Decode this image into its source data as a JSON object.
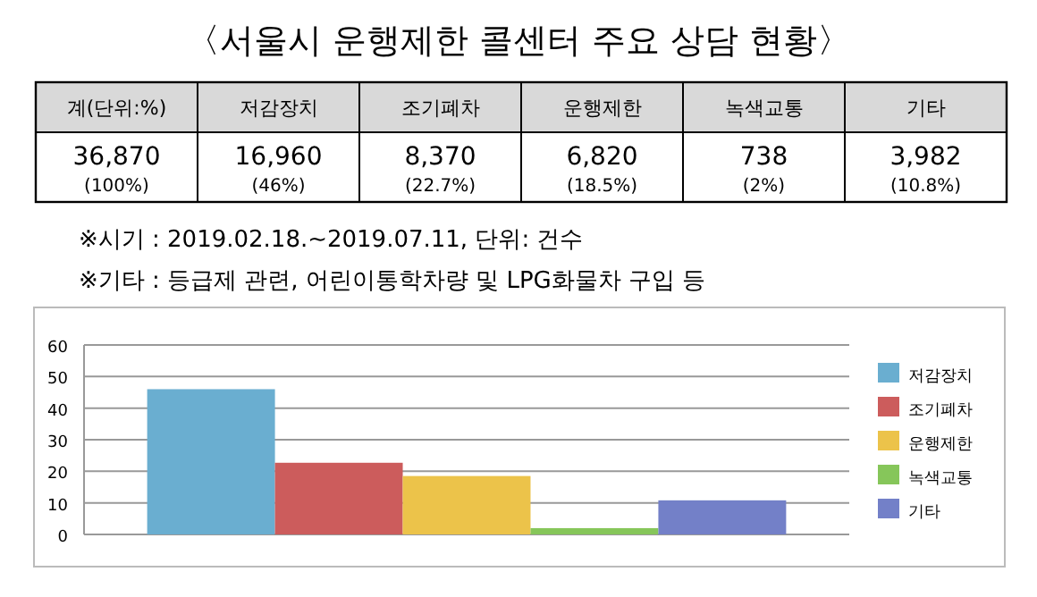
{
  "chart_data": {
    "type": "bar",
    "title": "〈서울시 운행제한 콜센터 주요 상담 현황〉",
    "categories": [
      null
    ],
    "series": [
      {
        "name": "저감장치",
        "color": "#6aaed0",
        "values": [
          46
        ]
      },
      {
        "name": "조기폐차",
        "color": "#cc5c5c",
        "values": [
          22.7
        ]
      },
      {
        "name": "운행제한",
        "color": "#ecc34a",
        "values": [
          18.5
        ]
      },
      {
        "name": "녹색교통",
        "color": "#86c65a",
        "values": [
          2
        ]
      },
      {
        "name": "기타",
        "color": "#7380c8",
        "values": [
          10.8
        ]
      }
    ],
    "ylim": [
      0,
      60
    ],
    "yticks": [
      0,
      10,
      20,
      30,
      40,
      50,
      60
    ],
    "grid": "y",
    "legend": "right",
    "tick_labels": "y",
    "annotations": [
      "계(단위:%)",
      "36,870\n(100%)",
      "16,960\n(46%)",
      "8,370\n(22.7%)",
      "6,820\n(18.5%)",
      "738\n(2%)",
      "3,982\n(10.8%)",
      "※시기 : 2019.02.18.~2019.07.11, 단위: 건수",
      "※기타 : 등급제 관련, 어린이통학차량 및 LPG화물차 구입 등"
    ]
  }
}
